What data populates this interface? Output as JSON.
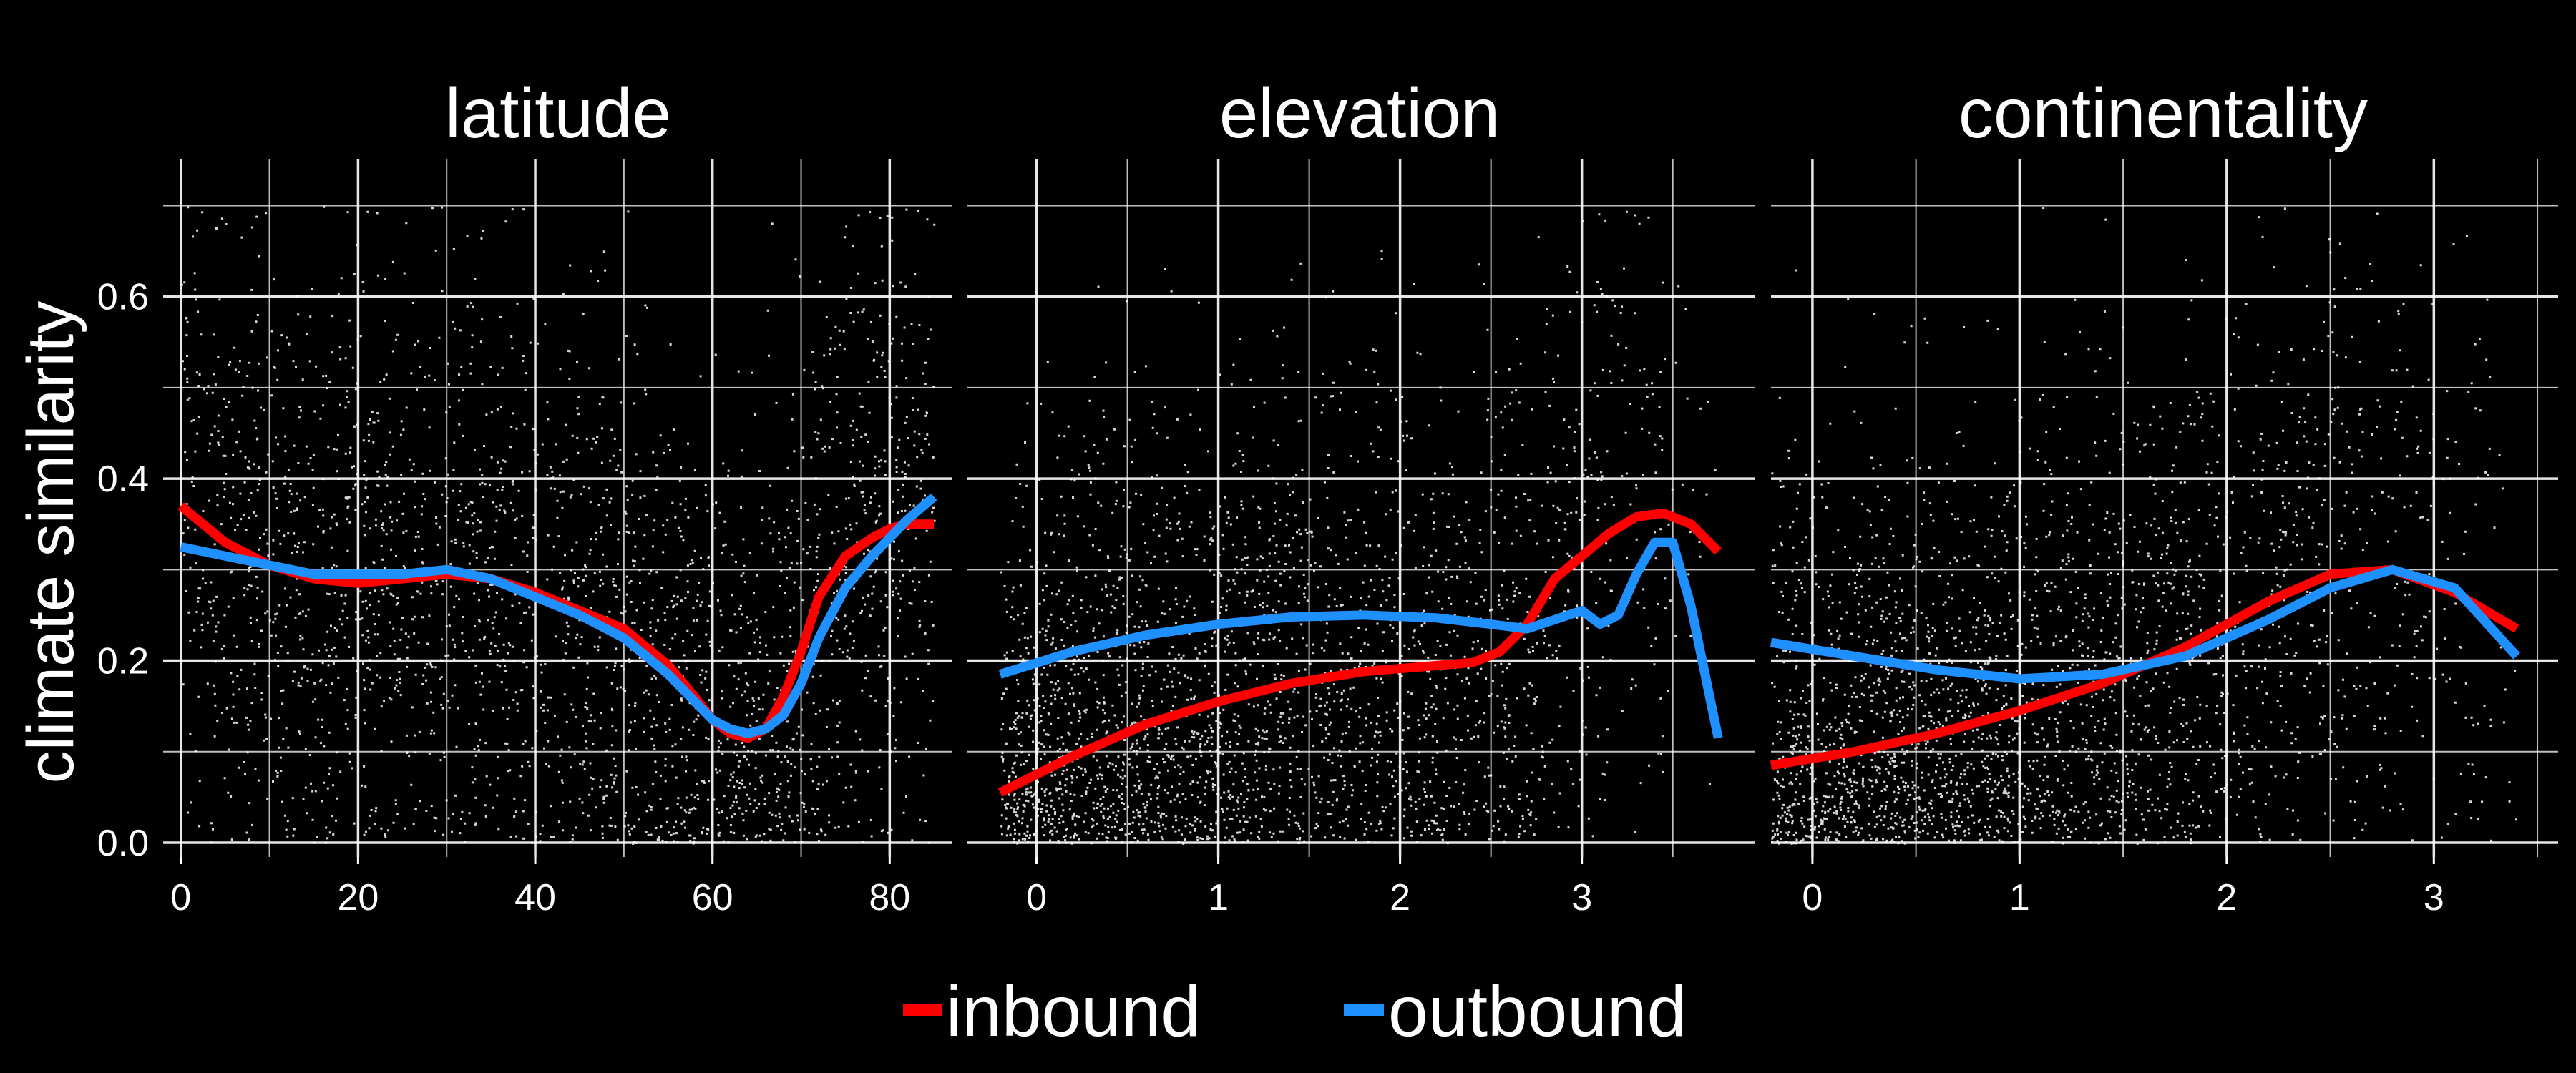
{
  "colors": {
    "background": "#000000",
    "grid": "#ffffff",
    "points": "#ffffff",
    "text": "#ffffff"
  },
  "legend": {
    "placement": "bottom-center",
    "items": [
      {
        "label": "inbound",
        "color": "#ff0000"
      },
      {
        "label": "outbound",
        "color": "#1e90ff"
      }
    ]
  },
  "chart_data": [
    {
      "type": "scatter",
      "title": "latitude",
      "ylabel": "climate similarity",
      "xlim": [
        -2,
        87
      ],
      "ylim": [
        0,
        0.72
      ],
      "xticks": [
        0,
        20,
        40,
        60,
        80
      ],
      "yticks": [
        0.0,
        0.2,
        0.4,
        0.6
      ],
      "grid": true,
      "series": [
        {
          "name": "inbound",
          "color": "#ff0000",
          "x": [
            0,
            5,
            10,
            15,
            20,
            25,
            30,
            35,
            40,
            45,
            50,
            55,
            58,
            60,
            62,
            64,
            66,
            68,
            70,
            72,
            75,
            78,
            80,
            82,
            85
          ],
          "y": [
            0.37,
            0.33,
            0.305,
            0.29,
            0.285,
            0.29,
            0.295,
            0.29,
            0.275,
            0.255,
            0.235,
            0.195,
            0.16,
            0.135,
            0.12,
            0.115,
            0.125,
            0.16,
            0.21,
            0.27,
            0.315,
            0.335,
            0.345,
            0.35,
            0.35
          ]
        },
        {
          "name": "outbound",
          "color": "#1e90ff",
          "x": [
            0,
            5,
            10,
            15,
            20,
            25,
            30,
            35,
            40,
            45,
            50,
            55,
            58,
            60,
            62,
            64,
            66,
            68,
            70,
            72,
            75,
            78,
            80,
            82,
            85
          ],
          "y": [
            0.325,
            0.315,
            0.305,
            0.295,
            0.295,
            0.295,
            0.3,
            0.29,
            0.27,
            0.25,
            0.225,
            0.185,
            0.155,
            0.135,
            0.125,
            0.12,
            0.125,
            0.14,
            0.175,
            0.225,
            0.28,
            0.315,
            0.335,
            0.355,
            0.38
          ]
        }
      ]
    },
    {
      "type": "scatter",
      "title": "elevation",
      "ylabel": "",
      "xlim": [
        -0.38,
        3.95
      ],
      "ylim": [
        0,
        0.72
      ],
      "xticks": [
        0,
        1,
        2,
        3
      ],
      "yticks": [
        0.0,
        0.2,
        0.4,
        0.6
      ],
      "grid": true,
      "series": [
        {
          "name": "inbound",
          "color": "#ff0000",
          "x": [
            -0.2,
            0.2,
            0.6,
            1.0,
            1.4,
            1.8,
            2.1,
            2.4,
            2.55,
            2.7,
            2.85,
            3.0,
            3.15,
            3.3,
            3.45,
            3.6,
            3.75
          ],
          "y": [
            0.055,
            0.095,
            0.13,
            0.155,
            0.175,
            0.188,
            0.193,
            0.198,
            0.21,
            0.24,
            0.29,
            0.315,
            0.34,
            0.358,
            0.362,
            0.35,
            0.32
          ]
        },
        {
          "name": "outbound",
          "color": "#1e90ff",
          "x": [
            -0.2,
            0.2,
            0.6,
            1.0,
            1.4,
            1.8,
            2.2,
            2.5,
            2.7,
            2.85,
            3.0,
            3.1,
            3.2,
            3.3,
            3.4,
            3.5,
            3.6,
            3.75
          ],
          "y": [
            0.185,
            0.21,
            0.228,
            0.24,
            0.248,
            0.25,
            0.247,
            0.24,
            0.235,
            0.245,
            0.255,
            0.24,
            0.25,
            0.295,
            0.33,
            0.33,
            0.26,
            0.115
          ]
        }
      ]
    },
    {
      "type": "scatter",
      "title": "continentality",
      "ylabel": "",
      "xlim": [
        -0.2,
        3.6
      ],
      "ylim": [
        0,
        0.72
      ],
      "xticks": [
        0,
        1,
        2,
        3
      ],
      "yticks": [
        0.0,
        0.2,
        0.4,
        0.6
      ],
      "grid": true,
      "series": [
        {
          "name": "inbound",
          "color": "#ff0000",
          "x": [
            -0.2,
            0.2,
            0.6,
            1.0,
            1.4,
            1.8,
            2.2,
            2.5,
            2.8,
            3.1,
            3.4
          ],
          "y": [
            0.085,
            0.1,
            0.12,
            0.145,
            0.175,
            0.215,
            0.265,
            0.295,
            0.3,
            0.275,
            0.235
          ]
        },
        {
          "name": "outbound",
          "color": "#1e90ff",
          "x": [
            -0.2,
            0.2,
            0.6,
            1.0,
            1.4,
            1.8,
            2.2,
            2.5,
            2.8,
            3.1,
            3.4
          ],
          "y": [
            0.22,
            0.205,
            0.19,
            0.18,
            0.185,
            0.205,
            0.245,
            0.28,
            0.3,
            0.28,
            0.205
          ]
        }
      ]
    }
  ]
}
